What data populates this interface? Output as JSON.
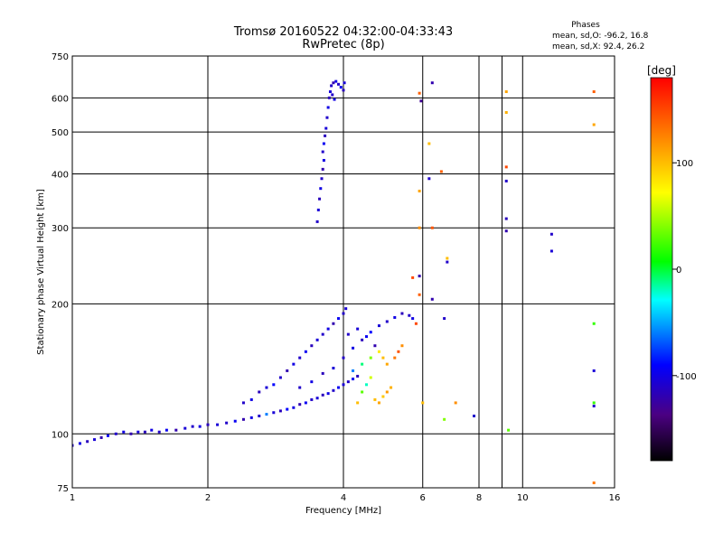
{
  "header": {
    "title_line1": "Tromsø 20160522 04:32:00-04:33:43",
    "title_line2": "RwPretec (8p)"
  },
  "stats": {
    "heading": "Phases",
    "line_o": "mean, sd,O: -96.2, 16.8",
    "line_x": "mean, sd,X: 92.4, 26.2"
  },
  "chart_data": {
    "type": "scatter",
    "xlabel": "Frequency [MHz]",
    "ylabel": "Stationary phase Virtual Height [km]",
    "x_scale": "log",
    "y_scale": "log",
    "xlim": [
      1,
      16
    ],
    "ylim": [
      75,
      750
    ],
    "x_ticks": [
      1,
      2,
      4,
      6,
      8,
      10,
      16
    ],
    "x_tick_labels": [
      "1",
      "2",
      "4",
      "6",
      "8",
      "10",
      "16"
    ],
    "y_ticks": [
      75,
      100,
      200,
      300,
      400,
      500,
      600,
      750
    ],
    "y_tick_labels": [
      "75",
      "100",
      "200",
      "300",
      "400",
      "500",
      "600",
      "750"
    ],
    "grid": true,
    "colorbar": {
      "label": "[deg]",
      "range": [
        -180,
        180
      ],
      "ticks": [
        100,
        0,
        -100
      ],
      "tick_labels": [
        "100",
        "0",
        "-100"
      ],
      "colormap": "rainbow"
    },
    "series": [
      {
        "points": [
          [
            1.0,
            94,
            -110
          ],
          [
            1.04,
            95,
            -100
          ],
          [
            1.08,
            96,
            -115
          ],
          [
            1.12,
            97,
            -105
          ],
          [
            1.16,
            98,
            -120
          ],
          [
            1.2,
            99,
            -95
          ],
          [
            1.25,
            100,
            -110
          ],
          [
            1.3,
            101,
            -100
          ],
          [
            1.35,
            100,
            -120
          ],
          [
            1.4,
            101,
            -105
          ],
          [
            1.45,
            101,
            -115
          ],
          [
            1.5,
            102,
            -100
          ],
          [
            1.56,
            101,
            -110
          ],
          [
            1.62,
            102,
            -95
          ],
          [
            1.7,
            102,
            -120
          ],
          [
            1.78,
            103,
            -105
          ],
          [
            1.85,
            104,
            -110
          ],
          [
            1.92,
            104,
            -100
          ],
          [
            2.0,
            105,
            -115
          ],
          [
            2.1,
            105,
            -105
          ],
          [
            2.2,
            106,
            -110
          ],
          [
            2.3,
            107,
            -95
          ],
          [
            2.4,
            108,
            -120
          ],
          [
            2.5,
            109,
            -100
          ],
          [
            2.6,
            110,
            -110
          ],
          [
            2.7,
            111,
            -60
          ],
          [
            2.8,
            112,
            -105
          ],
          [
            2.9,
            113,
            -115
          ],
          [
            3.0,
            114,
            -90
          ],
          [
            3.1,
            115,
            -100
          ],
          [
            3.2,
            117,
            -120
          ],
          [
            3.3,
            118,
            -95
          ],
          [
            3.4,
            120,
            -110
          ],
          [
            3.5,
            121,
            -105
          ],
          [
            3.6,
            123,
            -115
          ],
          [
            3.7,
            124,
            -100
          ],
          [
            3.8,
            126,
            -110
          ],
          [
            3.9,
            128,
            -95
          ],
          [
            4.0,
            130,
            -105
          ],
          [
            4.1,
            132,
            -110
          ],
          [
            4.2,
            134,
            -95
          ],
          [
            4.3,
            136,
            -115
          ]
        ]
      },
      {
        "points": [
          [
            2.4,
            118,
            -110
          ],
          [
            2.5,
            120,
            -100
          ],
          [
            2.6,
            125,
            -115
          ],
          [
            2.7,
            128,
            -105
          ],
          [
            2.8,
            130,
            -90
          ],
          [
            2.9,
            135,
            -110
          ],
          [
            3.0,
            140,
            -120
          ],
          [
            3.1,
            145,
            -100
          ],
          [
            3.2,
            150,
            -110
          ],
          [
            3.3,
            155,
            -95
          ],
          [
            3.4,
            160,
            -115
          ],
          [
            3.5,
            165,
            -105
          ],
          [
            3.6,
            170,
            -110
          ],
          [
            3.7,
            175,
            -100
          ],
          [
            3.8,
            180,
            -120
          ],
          [
            3.9,
            185,
            -95
          ],
          [
            4.0,
            190,
            -110
          ],
          [
            4.05,
            195,
            -105
          ],
          [
            3.2,
            128,
            -110
          ],
          [
            3.4,
            132,
            -100
          ],
          [
            3.6,
            138,
            -115
          ],
          [
            3.8,
            142,
            -105
          ],
          [
            4.0,
            150,
            -110
          ],
          [
            4.2,
            158,
            -100
          ],
          [
            4.4,
            165,
            -115
          ],
          [
            4.6,
            172,
            -90
          ],
          [
            4.8,
            178,
            -105
          ],
          [
            5.0,
            182,
            -110
          ],
          [
            5.2,
            186,
            -100
          ],
          [
            5.4,
            190,
            -115
          ],
          [
            5.6,
            188,
            -110
          ],
          [
            5.7,
            185,
            -100
          ],
          [
            4.1,
            170,
            -110
          ],
          [
            4.3,
            175,
            -105
          ],
          [
            4.5,
            168,
            -95
          ],
          [
            4.7,
            160,
            -120
          ]
        ]
      },
      {
        "points": [
          [
            4.2,
            140,
            -60
          ],
          [
            4.4,
            145,
            -10
          ],
          [
            4.6,
            150,
            40
          ],
          [
            4.8,
            155,
            80
          ],
          [
            4.9,
            150,
            100
          ],
          [
            5.0,
            145,
            110
          ],
          [
            4.7,
            120,
            100
          ],
          [
            4.8,
            118,
            110
          ],
          [
            4.9,
            122,
            95
          ],
          [
            5.0,
            125,
            115
          ],
          [
            5.1,
            128,
            105
          ],
          [
            4.5,
            130,
            -20
          ],
          [
            4.4,
            125,
            30
          ],
          [
            4.6,
            135,
            60
          ],
          [
            5.2,
            150,
            130
          ],
          [
            5.3,
            155,
            145
          ],
          [
            5.4,
            160,
            120
          ],
          [
            4.3,
            118,
            100
          ]
        ]
      },
      {
        "points": [
          [
            3.5,
            310,
            -110
          ],
          [
            3.52,
            330,
            -105
          ],
          [
            3.54,
            350,
            -115
          ],
          [
            3.56,
            370,
            -100
          ],
          [
            3.58,
            390,
            -110
          ],
          [
            3.6,
            410,
            -120
          ],
          [
            3.62,
            430,
            -100
          ],
          [
            3.6,
            450,
            -110
          ],
          [
            3.62,
            470,
            -95
          ],
          [
            3.64,
            490,
            -115
          ],
          [
            3.66,
            510,
            -105
          ],
          [
            3.68,
            540,
            -110
          ],
          [
            3.7,
            570,
            -100
          ],
          [
            3.72,
            600,
            -115
          ],
          [
            3.74,
            620,
            -105
          ],
          [
            3.76,
            640,
            -110
          ],
          [
            3.8,
            650,
            -120
          ],
          [
            3.85,
            655,
            -100
          ],
          [
            3.9,
            645,
            -110
          ],
          [
            3.95,
            635,
            -95
          ],
          [
            4.0,
            625,
            -115
          ],
          [
            4.02,
            650,
            -105
          ],
          [
            3.78,
            610,
            -110
          ],
          [
            3.82,
            595,
            -100
          ]
        ]
      },
      {
        "points": [
          [
            5.9,
            615,
            140
          ],
          [
            5.95,
            590,
            -130
          ],
          [
            6.3,
            650,
            -120
          ],
          [
            5.9,
            365,
            110
          ],
          [
            5.9,
            300,
            120
          ],
          [
            6.2,
            470,
            100
          ],
          [
            6.2,
            390,
            -110
          ],
          [
            6.6,
            405,
            140
          ],
          [
            6.8,
            255,
            100
          ],
          [
            6.8,
            250,
            -110
          ],
          [
            5.7,
            230,
            150
          ],
          [
            5.9,
            232,
            -120
          ],
          [
            6.3,
            300,
            145
          ],
          [
            5.9,
            210,
            140
          ],
          [
            6.3,
            205,
            -120
          ],
          [
            6.7,
            185,
            -110
          ],
          [
            5.8,
            180,
            150
          ],
          [
            6.0,
            118,
            100
          ],
          [
            7.1,
            118,
            120
          ],
          [
            6.7,
            108,
            40
          ],
          [
            7.8,
            110,
            -110
          ],
          [
            9.3,
            102,
            30
          ],
          [
            9.2,
            620,
            110
          ],
          [
            9.2,
            555,
            105
          ],
          [
            9.2,
            415,
            150
          ],
          [
            9.2,
            385,
            -110
          ],
          [
            9.2,
            315,
            -115
          ],
          [
            9.2,
            295,
            -120
          ],
          [
            11.6,
            290,
            -110
          ],
          [
            11.6,
            265,
            -105
          ],
          [
            14.4,
            620,
            140
          ],
          [
            14.4,
            520,
            110
          ],
          [
            14.4,
            180,
            20
          ],
          [
            14.4,
            140,
            -105
          ],
          [
            14.4,
            118,
            20
          ],
          [
            14.4,
            116,
            -110
          ],
          [
            14.4,
            77,
            130
          ]
        ]
      }
    ]
  }
}
